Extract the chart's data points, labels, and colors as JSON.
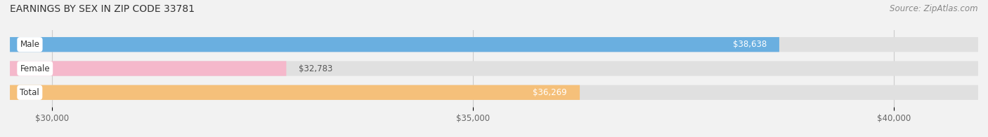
{
  "title": "EARNINGS BY SEX IN ZIP CODE 33781",
  "source": "Source: ZipAtlas.com",
  "categories": [
    "Male",
    "Female",
    "Total"
  ],
  "values": [
    38638,
    32783,
    36269
  ],
  "bar_colors": [
    "#6aafe0",
    "#f5b8cb",
    "#f5c07a"
  ],
  "value_label_colors": [
    "#ffffff",
    "#555555",
    "#ffffff"
  ],
  "value_label_inside": [
    true,
    false,
    true
  ],
  "x_min": 29500,
  "x_max": 41000,
  "x_ticks": [
    30000,
    35000,
    40000
  ],
  "x_tick_labels": [
    "$30,000",
    "$35,000",
    "$40,000"
  ],
  "background_color": "#f2f2f2",
  "bar_bg_color": "#e0e0e0",
  "title_fontsize": 10,
  "source_fontsize": 8.5,
  "label_fontsize": 8.5,
  "tick_fontsize": 8.5,
  "cat_fontsize": 8.5
}
